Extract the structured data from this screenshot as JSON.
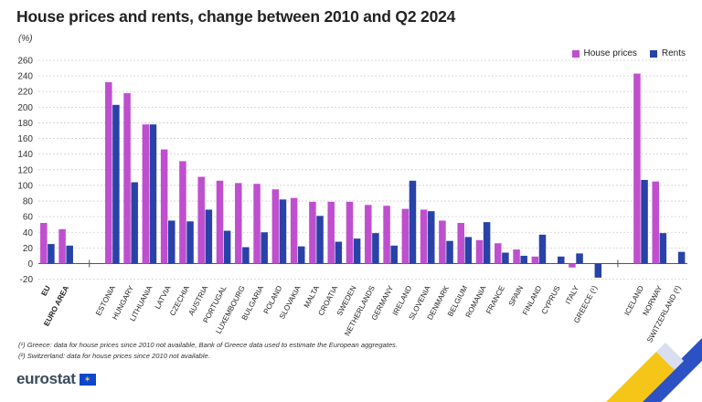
{
  "header": {
    "title": "House prices and rents, change between 2010 and Q2 2024",
    "unit": "(%)"
  },
  "legend": [
    {
      "label": "House prices",
      "color": "#bf4fcf"
    },
    {
      "label": "Rents",
      "color": "#2942a8"
    }
  ],
  "footnotes": {
    "note1": "(¹) Greece: data for house prices since 2010 not available, Bank of Greece data used to estimate the European aggregates.",
    "note2": "(²) Switzerland: data for house prices since 2010 not available."
  },
  "brand": {
    "name": "eurostat",
    "flag_icon": "eu-flag-icon"
  },
  "chart_data": {
    "type": "bar",
    "title": "House prices and rents, change between 2010 and Q2 2024",
    "ylabel": "(%)",
    "xlabel": "",
    "ylim": [
      -30,
      260
    ],
    "yticks": [
      -20,
      0,
      20,
      40,
      60,
      80,
      100,
      120,
      140,
      160,
      180,
      200,
      220,
      240,
      260
    ],
    "grid": true,
    "legend_position": "top-right",
    "categories": [
      "EU",
      "EURO AREA",
      "ESTONIA",
      "HUNGARY",
      "LITHUANIA",
      "LATVIA",
      "CZECHIA",
      "AUSTRIA",
      "PORTUGAL",
      "LUXEMBOURG",
      "BULGARIA",
      "POLAND",
      "SLOVAKIA",
      "MALTA",
      "CROATIA",
      "SWEDEN",
      "NETHERLANDS",
      "GERMANY",
      "IRELAND",
      "SLOVENIA",
      "DENMARK",
      "BELGIUM",
      "ROMANIA",
      "FRANCE",
      "SPAIN",
      "FINLAND",
      "CYPRUS",
      "ITALY",
      "GREECE (¹)",
      "ICELAND",
      "NORWAY",
      "SWITZERLAND (²)"
    ],
    "series": [
      {
        "name": "House prices",
        "color": "#bf4fcf",
        "values": [
          52,
          44,
          232,
          218,
          178,
          146,
          131,
          111,
          106,
          103,
          102,
          95,
          84,
          79,
          79,
          79,
          75,
          74,
          70,
          69,
          55,
          52,
          30,
          26,
          18,
          9,
          null,
          -5,
          null,
          243,
          105,
          null
        ]
      },
      {
        "name": "Rents",
        "color": "#2942a8",
        "values": [
          25,
          23,
          203,
          104,
          178,
          55,
          54,
          69,
          42,
          21,
          40,
          82,
          22,
          61,
          28,
          32,
          39,
          23,
          106,
          67,
          29,
          34,
          53,
          14,
          10,
          37,
          9,
          13,
          -18,
          107,
          39,
          15
        ]
      }
    ],
    "groups": [
      {
        "start": 0,
        "end": 1
      },
      {
        "start": 2,
        "end": 28
      },
      {
        "start": 29,
        "end": 31
      }
    ]
  }
}
